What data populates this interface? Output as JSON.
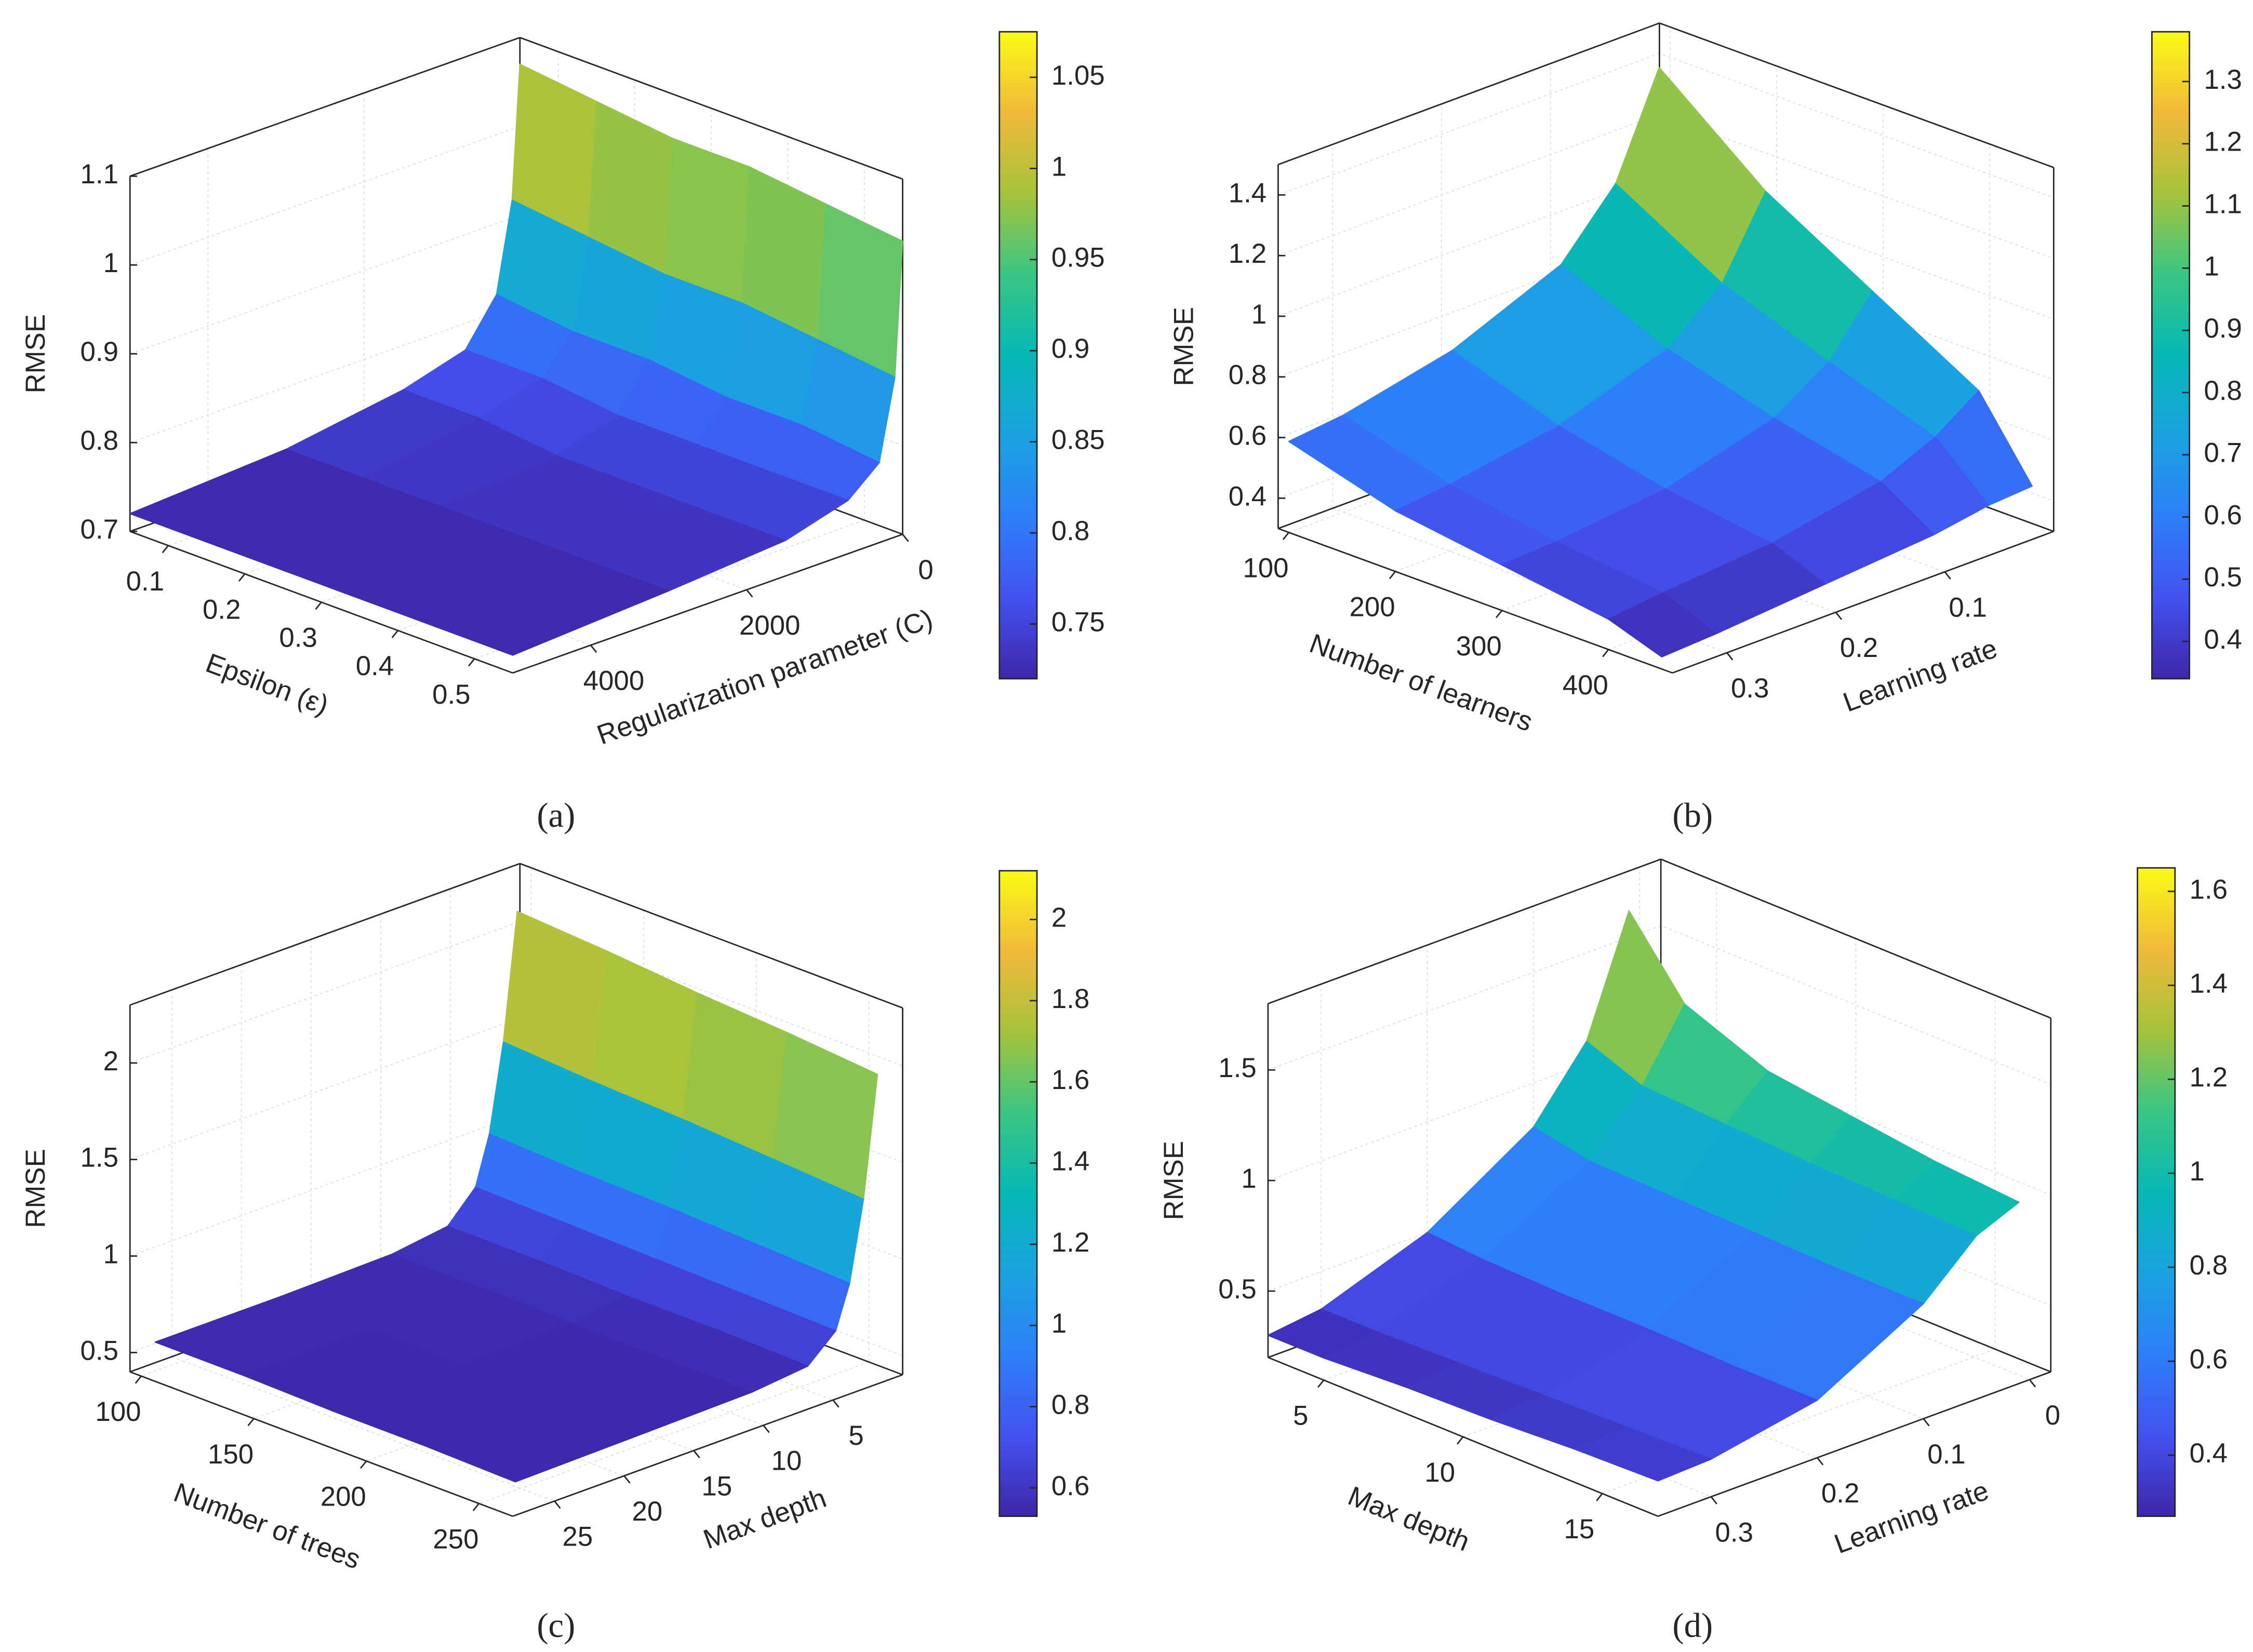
{
  "chart_data": [
    {
      "type": "surface",
      "label": "(a)",
      "xlabel": "Epsilon (ε)",
      "ylabel": "Regularization parameter (C)",
      "zlabel": "RMSE",
      "x": [
        0.05,
        0.15,
        0.25,
        0.35,
        0.45,
        0.55
      ],
      "y": [
        1,
        100,
        300,
        700,
        1500,
        3000,
        5000
      ],
      "values": [
        [
          1.07,
          0.92,
          0.82,
          0.77,
          0.75,
          0.73,
          0.72
        ],
        [
          1.06,
          0.91,
          0.81,
          0.77,
          0.75,
          0.73,
          0.72
        ],
        [
          1.05,
          0.9,
          0.81,
          0.76,
          0.74,
          0.73,
          0.72
        ],
        [
          1.05,
          0.9,
          0.8,
          0.76,
          0.74,
          0.73,
          0.72
        ],
        [
          1.04,
          0.89,
          0.8,
          0.76,
          0.74,
          0.73,
          0.72
        ],
        [
          1.03,
          0.88,
          0.79,
          0.76,
          0.74,
          0.73,
          0.72
        ]
      ],
      "xlim": [
        0.05,
        0.55
      ],
      "xticks": [
        0.1,
        0.2,
        0.3,
        0.4,
        0.5
      ],
      "ylim": [
        0,
        5000
      ],
      "yticks": [
        0,
        2000,
        4000
      ],
      "zlim": [
        0.7,
        1.1
      ],
      "zticks": [
        0.7,
        0.8,
        0.9,
        1,
        1.1
      ],
      "clim": [
        0.72,
        1.075
      ],
      "cticks": [
        0.75,
        0.8,
        0.85,
        0.9,
        0.95,
        1,
        1.05
      ],
      "colormap": [
        "#3e26a8",
        "#4352f0",
        "#2d7ff9",
        "#1aa3e0",
        "#06b8b5",
        "#39c683",
        "#a6c33b",
        "#f1b93a",
        "#f9fb15"
      ],
      "grid": true
    },
    {
      "type": "surface",
      "label": "(b)",
      "xlabel": "Number of learners",
      "ylabel": "Learning rate",
      "zlabel": "RMSE",
      "x": [
        100,
        200,
        300,
        400,
        450
      ],
      "y": [
        0.01,
        0.05,
        0.1,
        0.2,
        0.3,
        0.35
      ],
      "values": [
        [
          1.38,
          1.05,
          0.85,
          0.7,
          0.62,
          0.6
        ],
        [
          1.1,
          0.85,
          0.7,
          0.58,
          0.52,
          0.5
        ],
        [
          0.9,
          0.72,
          0.6,
          0.5,
          0.46,
          0.45
        ],
        [
          0.7,
          0.6,
          0.52,
          0.45,
          0.42,
          0.4
        ],
        [
          0.45,
          0.44,
          0.41,
          0.38,
          0.35,
          0.34
        ]
      ],
      "xlim": [
        90,
        460
      ],
      "xticks": [
        100,
        200,
        300,
        400
      ],
      "ylim": [
        0,
        0.35
      ],
      "yticks": [
        0.1,
        0.2,
        0.3
      ],
      "zlim": [
        0.3,
        1.5
      ],
      "zticks": [
        0.4,
        0.6,
        0.8,
        1,
        1.2,
        1.4
      ],
      "clim": [
        0.34,
        1.38
      ],
      "cticks": [
        0.4,
        0.5,
        0.6,
        0.7,
        0.8,
        0.9,
        1,
        1.1,
        1.2,
        1.3
      ],
      "colormap": [
        "#3e26a8",
        "#4352f0",
        "#2d7ff9",
        "#1aa3e0",
        "#06b8b5",
        "#39c683",
        "#a6c33b",
        "#f1b93a",
        "#f9fb15"
      ],
      "grid": true
    },
    {
      "type": "surface",
      "label": "(c)",
      "xlabel": "Number of trees",
      "ylabel": "Max depth",
      "zlabel": "RMSE",
      "x": [
        100,
        140,
        180,
        220,
        260
      ],
      "y": [
        1,
        2,
        3,
        4,
        6,
        10,
        18,
        27
      ],
      "values": [
        [
          2.1,
          1.45,
          1.0,
          0.75,
          0.6,
          0.56,
          0.55,
          0.55
        ],
        [
          2.07,
          1.42,
          0.98,
          0.74,
          0.6,
          0.56,
          0.55,
          0.55
        ],
        [
          2.03,
          1.4,
          0.97,
          0.73,
          0.59,
          0.55,
          0.54,
          0.54
        ],
        [
          2.0,
          1.37,
          0.95,
          0.72,
          0.59,
          0.55,
          0.54,
          0.54
        ],
        [
          1.96,
          1.34,
          0.93,
          0.71,
          0.58,
          0.55,
          0.54,
          0.53
        ]
      ],
      "xlim": [
        95,
        265
      ],
      "xticks": [
        100,
        150,
        200,
        250
      ],
      "ylim": [
        0,
        28
      ],
      "yticks": [
        5,
        10,
        15,
        20,
        25
      ],
      "zlim": [
        0.4,
        2.3
      ],
      "zticks": [
        0.5,
        1,
        1.5,
        2
      ],
      "clim": [
        0.53,
        2.12
      ],
      "cticks": [
        0.6,
        0.8,
        1,
        1.2,
        1.4,
        1.6,
        1.8,
        2
      ],
      "colormap": [
        "#3e26a8",
        "#4352f0",
        "#2d7ff9",
        "#1aa3e0",
        "#06b8b5",
        "#39c683",
        "#a6c33b",
        "#f1b93a",
        "#f9fb15"
      ],
      "grid": true
    },
    {
      "type": "surface",
      "label": "(d)",
      "xlabel": "Max depth",
      "ylabel": "Learning rate",
      "zlabel": "RMSE",
      "x": [
        3,
        5,
        8,
        11,
        14,
        17
      ],
      "y": [
        0.01,
        0.05,
        0.1,
        0.2,
        0.3,
        0.35
      ],
      "values": [
        [
          1.62,
          1.1,
          0.8,
          0.5,
          0.33,
          0.3
        ],
        [
          1.3,
          1.0,
          0.75,
          0.48,
          0.33,
          0.3
        ],
        [
          1.15,
          0.98,
          0.74,
          0.47,
          0.34,
          0.32
        ],
        [
          1.1,
          0.96,
          0.73,
          0.47,
          0.35,
          0.33
        ],
        [
          1.05,
          0.95,
          0.72,
          0.46,
          0.36,
          0.35
        ],
        [
          1.02,
          0.94,
          0.72,
          0.46,
          0.37,
          0.36
        ]
      ],
      "xlim": [
        3,
        17
      ],
      "xticks": [
        5,
        10,
        15
      ],
      "ylim": [
        -0.02,
        0.35
      ],
      "yticks": [
        0,
        0.1,
        0.2,
        0.3
      ],
      "zlim": [
        0.2,
        1.8
      ],
      "zticks": [
        0.5,
        1,
        1.5
      ],
      "clim": [
        0.27,
        1.65
      ],
      "cticks": [
        0.4,
        0.6,
        0.8,
        1,
        1.2,
        1.4,
        1.6
      ],
      "colormap": [
        "#3e26a8",
        "#4352f0",
        "#2d7ff9",
        "#1aa3e0",
        "#06b8b5",
        "#39c683",
        "#a6c33b",
        "#f1b93a",
        "#f9fb15"
      ],
      "grid": true
    }
  ]
}
